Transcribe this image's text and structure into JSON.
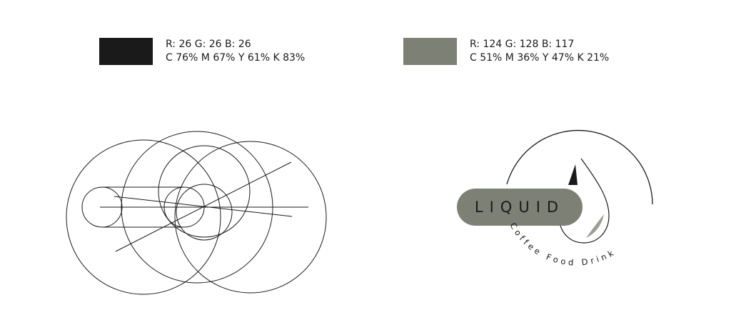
{
  "palette": [
    {
      "hex": "#1a1a1a",
      "rgb_line": "R: 26  G: 26  B: 26",
      "cmyk_line": "C 76%  M 67%  Y 61%  K 83%"
    },
    {
      "hex": "#7c8075",
      "rgb_line": "R: 124  G: 128  B: 117",
      "cmyk_line": "C 51%  M 36%  Y 47%  K 21%"
    }
  ],
  "logo": {
    "wordmark": "LIQUID",
    "tagline": "Coffee Food Drink",
    "colors": {
      "ink": "#1a1a1a",
      "pill": "#7c8075",
      "drop_shade": "#9a9e93"
    }
  }
}
